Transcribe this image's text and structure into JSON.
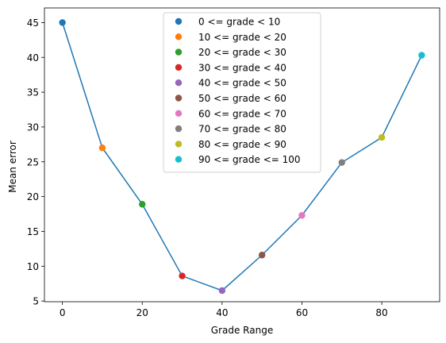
{
  "chart_data": {
    "type": "scatter",
    "title": "",
    "xlabel": "Grade Range",
    "ylabel": "Mean error",
    "xlim": [
      -4.5,
      94.5
    ],
    "ylim": [
      4.9,
      47.1
    ],
    "xticks": [
      0,
      20,
      40,
      60,
      80
    ],
    "yticks": [
      5,
      10,
      15,
      20,
      25,
      30,
      35,
      40,
      45
    ],
    "grid": false,
    "legend_position": "top-center",
    "line_color": "#1f77b4",
    "series": [
      {
        "name": "0 <= grade < 10",
        "x": 0,
        "y": 45.0,
        "color": "#1f77b4"
      },
      {
        "name": "10 <= grade < 20",
        "x": 10,
        "y": 27.0,
        "color": "#ff7f0e"
      },
      {
        "name": "20 <= grade < 30",
        "x": 20,
        "y": 18.9,
        "color": "#2ca02c"
      },
      {
        "name": "30 <= grade < 40",
        "x": 30,
        "y": 8.6,
        "color": "#d62728"
      },
      {
        "name": "40 <= grade < 50",
        "x": 40,
        "y": 6.5,
        "color": "#9467bd"
      },
      {
        "name": "50 <= grade < 60",
        "x": 50,
        "y": 11.6,
        "color": "#8c564b"
      },
      {
        "name": "60 <= grade < 70",
        "x": 60,
        "y": 17.3,
        "color": "#e377c2"
      },
      {
        "name": "70 <= grade < 80",
        "x": 70,
        "y": 24.9,
        "color": "#7f7f7f"
      },
      {
        "name": "80 <= grade < 90",
        "x": 80,
        "y": 28.5,
        "color": "#bcbd22"
      },
      {
        "name": "90 <= grade <= 100",
        "x": 90,
        "y": 40.3,
        "color": "#17becf"
      }
    ]
  }
}
